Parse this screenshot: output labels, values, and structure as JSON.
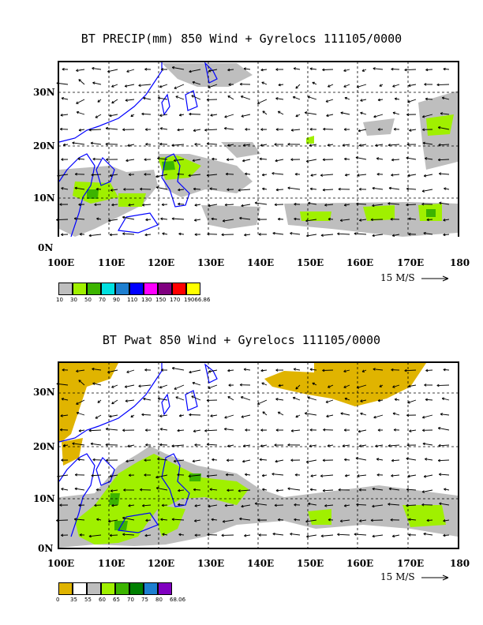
{
  "panels": [
    {
      "title": "BT PRECIP(mm) 850 Wind + Gyrelocs 111105/0000",
      "y_ticks": [
        "30N",
        "20N",
        "10N",
        "0N"
      ],
      "x_ticks": [
        "100E",
        "110E",
        "120E",
        "130E",
        "140E",
        "150E",
        "160E",
        "170E",
        "180"
      ],
      "scale_label": "15 M/S",
      "colorbar_labels": [
        "10",
        "30",
        "50",
        "70",
        "90",
        "110",
        "130",
        "150",
        "170",
        "19066.86"
      ],
      "colorbar_colors": [
        "#bebebe",
        "#a0f000",
        "#3cb400",
        "#00e0e0",
        "#1e7fd0",
        "#0000ff",
        "#ff00ff",
        "#800080",
        "#ff0000",
        "#ffff00"
      ]
    },
    {
      "title": "BT Pwat 850 Wind + Gyrelocs 111105/0000",
      "y_ticks": [
        "30N",
        "20N",
        "10N",
        "0N"
      ],
      "x_ticks": [
        "100E",
        "110E",
        "120E",
        "130E",
        "140E",
        "150E",
        "160E",
        "170E",
        "180"
      ],
      "scale_label": "15 M/S",
      "colorbar_labels": [
        "0",
        "35",
        "55",
        "60",
        "65",
        "70",
        "75",
        "80",
        "68.06"
      ],
      "colorbar_colors": [
        "#e0b400",
        "#ffffff",
        "#bebebe",
        "#a0f000",
        "#3cb400",
        "#008000",
        "#1e7fd0",
        "#8000c0"
      ]
    }
  ]
}
